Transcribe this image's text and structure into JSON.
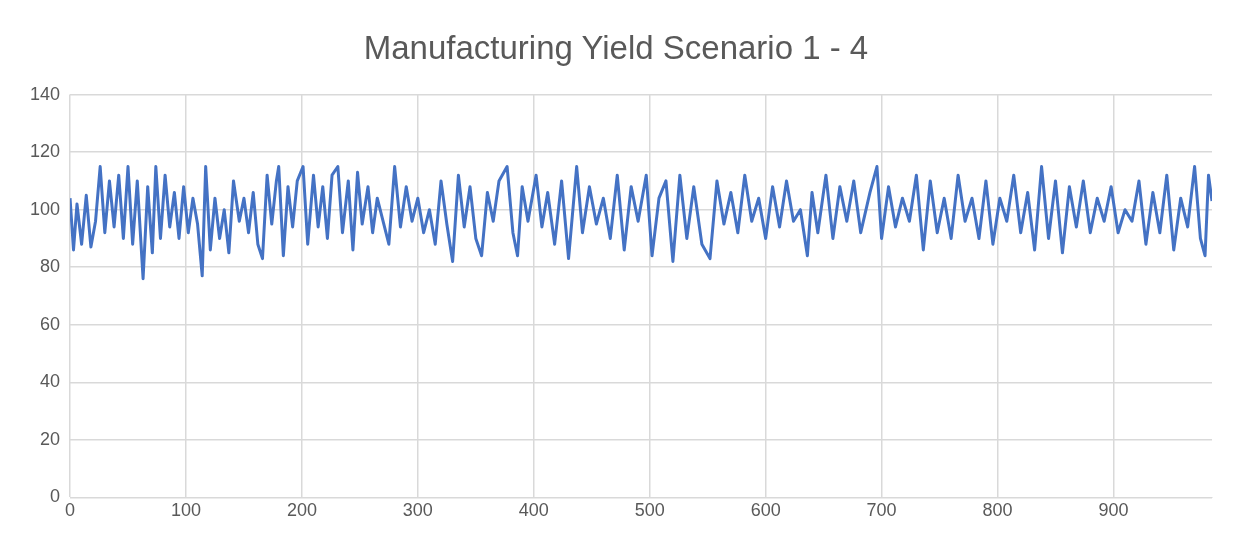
{
  "chart_data": {
    "type": "line",
    "title": "Manufacturing Yield Scenario 1 - 4",
    "x": [
      0,
      3,
      6,
      10,
      14,
      18,
      22,
      26,
      30,
      34,
      38,
      42,
      46,
      50,
      54,
      58,
      63,
      67,
      71,
      74,
      78,
      82,
      86,
      90,
      94,
      98,
      102,
      106,
      110,
      114,
      117,
      121,
      125,
      129,
      133,
      137,
      141,
      146,
      150,
      154,
      158,
      162,
      166,
      170,
      174,
      178,
      180,
      184,
      188,
      192,
      196,
      201,
      205,
      210,
      214,
      218,
      222,
      226,
      231,
      235,
      240,
      244,
      248,
      252,
      257,
      261,
      265,
      270,
      275,
      280,
      285,
      290,
      295,
      300,
      305,
      310,
      315,
      320,
      325,
      330,
      335,
      340,
      345,
      350,
      355,
      360,
      365,
      370,
      377,
      382,
      386,
      390,
      395,
      402,
      407,
      412,
      418,
      424,
      430,
      437,
      442,
      448,
      454,
      460,
      466,
      472,
      478,
      484,
      490,
      497,
      502,
      508,
      514,
      520,
      526,
      532,
      538,
      545,
      552,
      558,
      564,
      570,
      576,
      582,
      588,
      594,
      600,
      606,
      612,
      618,
      624,
      630,
      636,
      640,
      645,
      652,
      658,
      664,
      670,
      676,
      682,
      690,
      696,
      700,
      706,
      712,
      718,
      724,
      730,
      736,
      742,
      748,
      754,
      760,
      766,
      772,
      778,
      784,
      790,
      796,
      802,
      808,
      814,
      820,
      826,
      832,
      838,
      844,
      850,
      856,
      862,
      868,
      874,
      880,
      886,
      892,
      898,
      904,
      910,
      916,
      922,
      928,
      934,
      940,
      946,
      952,
      958,
      964,
      970,
      975,
      979,
      982,
      985
    ],
    "series": [
      {
        "color": "#4472c4",
        "values": [
          104,
          86,
          102,
          88,
          105,
          87,
          96,
          115,
          92,
          110,
          94,
          112,
          90,
          115,
          88,
          110,
          76,
          108,
          85,
          115,
          90,
          112,
          94,
          106,
          90,
          108,
          92,
          104,
          95,
          77,
          115,
          86,
          104,
          90,
          100,
          85,
          110,
          96,
          104,
          92,
          106,
          88,
          83,
          112,
          95,
          110,
          115,
          84,
          108,
          94,
          110,
          115,
          88,
          112,
          94,
          108,
          90,
          112,
          115,
          92,
          110,
          86,
          113,
          95,
          108,
          92,
          104,
          96,
          88,
          115,
          94,
          108,
          96,
          104,
          92,
          100,
          88,
          110,
          95,
          82,
          112,
          94,
          108,
          90,
          84,
          106,
          96,
          110,
          115,
          92,
          84,
          108,
          96,
          112,
          94,
          106,
          88,
          110,
          83,
          115,
          92,
          108,
          95,
          104,
          90,
          112,
          86,
          108,
          96,
          112,
          84,
          104,
          110,
          82,
          112,
          90,
          108,
          88,
          83,
          110,
          95,
          106,
          92,
          112,
          96,
          104,
          90,
          108,
          94,
          110,
          96,
          100,
          84,
          106,
          92,
          112,
          90,
          108,
          96,
          110,
          92,
          106,
          115,
          90,
          108,
          94,
          104,
          96,
          112,
          86,
          110,
          92,
          104,
          90,
          112,
          96,
          104,
          90,
          110,
          88,
          104,
          96,
          112,
          92,
          106,
          86,
          115,
          90,
          110,
          85,
          108,
          94,
          110,
          92,
          104,
          96,
          108,
          92,
          100,
          96,
          110,
          88,
          106,
          92,
          112,
          86,
          104,
          94,
          115,
          90,
          84,
          112,
          103
        ]
      }
    ],
    "xlim": [
      0,
      985
    ],
    "xticks": [
      0,
      100,
      200,
      300,
      400,
      500,
      600,
      700,
      800,
      900
    ],
    "ylim": [
      0,
      140
    ],
    "yticks": [
      0,
      20,
      40,
      60,
      80,
      100,
      120,
      140
    ],
    "grid": true,
    "legend": false,
    "marker": "none",
    "line_style": "solid"
  }
}
